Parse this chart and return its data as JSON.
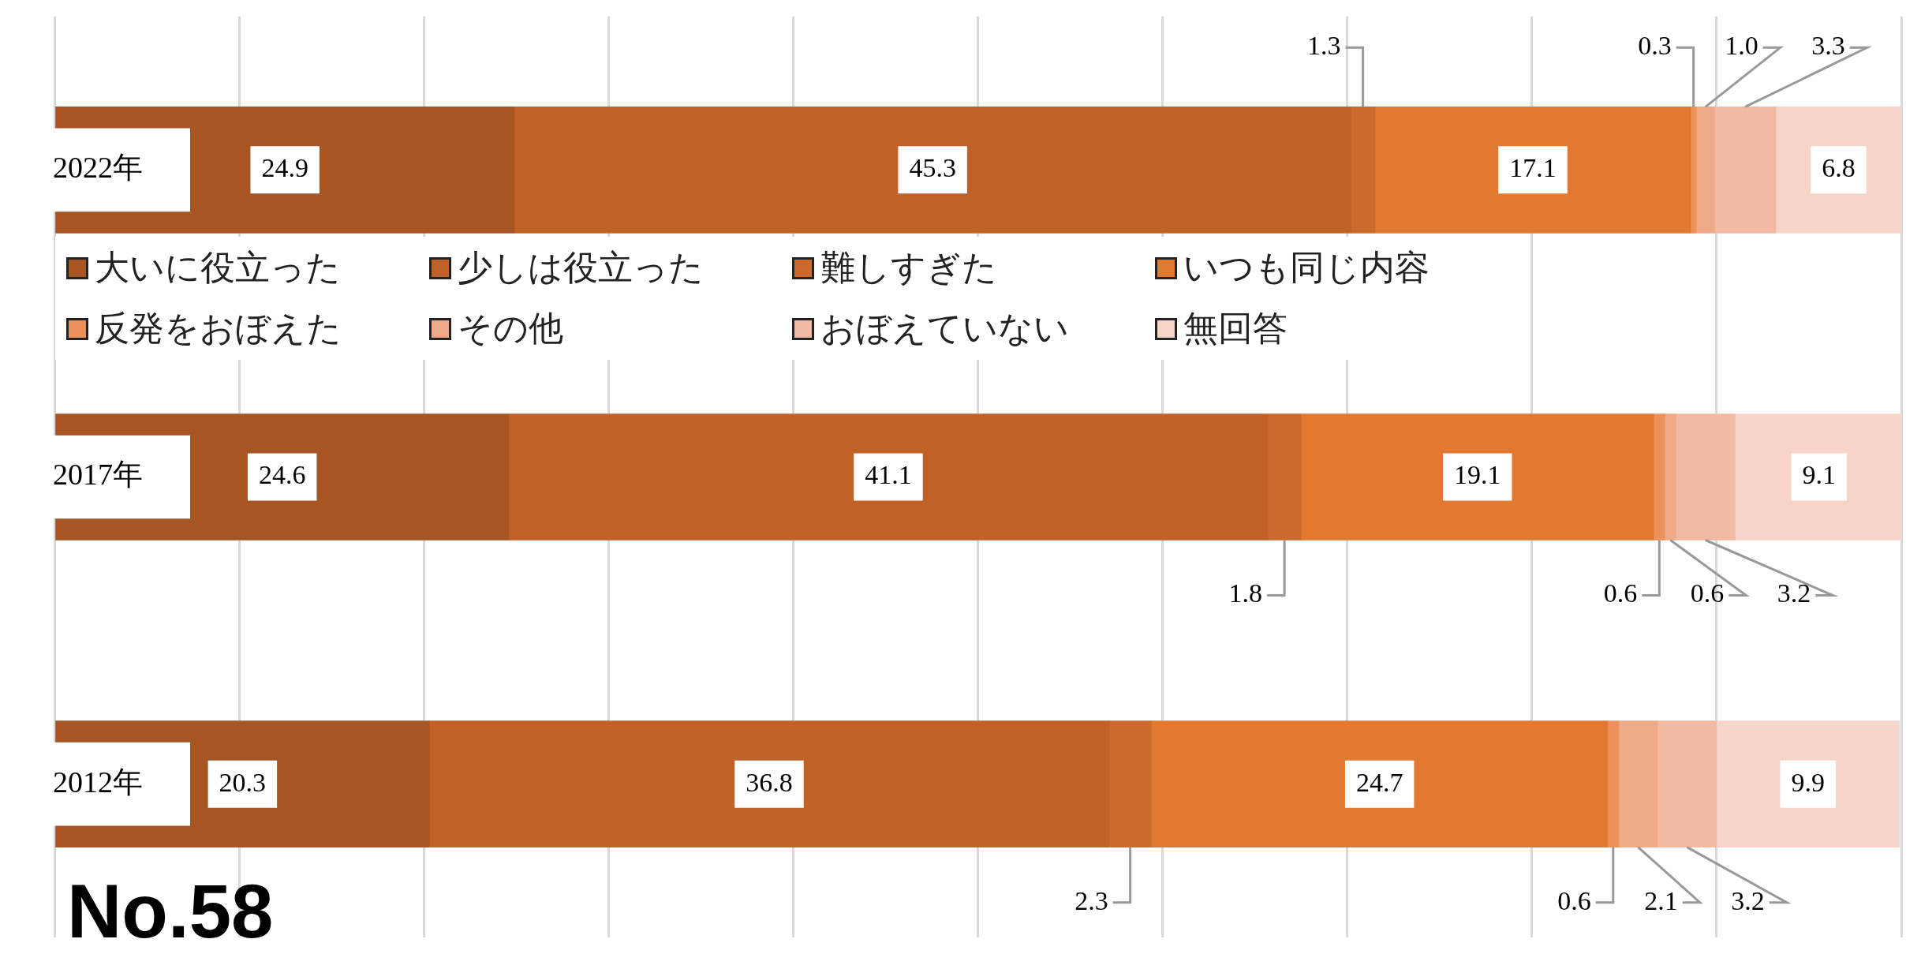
{
  "chart_data": {
    "type": "bar",
    "orientation": "horizontal",
    "stacked": true,
    "categories": [
      "2022年",
      "2017年",
      "2012年"
    ],
    "series": [
      {
        "name": "大いに役立った",
        "color": "#a65523",
        "values": [
          24.9,
          24.6,
          20.3
        ],
        "value_labels": [
          "24.9",
          "24.6",
          "20.3"
        ]
      },
      {
        "name": "少しは役立った",
        "color": "#c06228",
        "values": [
          45.3,
          41.1,
          36.8
        ],
        "value_labels": [
          "45.3",
          "41.1",
          "36.8"
        ]
      },
      {
        "name": "難しすぎた",
        "color": "#cb6a2c",
        "values": [
          1.3,
          1.8,
          2.3
        ],
        "value_labels": [
          "1.3",
          "1.8",
          "2.3"
        ]
      },
      {
        "name": "いつも同じ内容",
        "color": "#e27932",
        "values": [
          17.1,
          19.1,
          24.7
        ],
        "value_labels": [
          "17.1",
          "19.1",
          "24.7"
        ]
      },
      {
        "name": "反発をおぼえた",
        "color": "#ec915a",
        "values": [
          0.3,
          0.6,
          0.6
        ],
        "value_labels": [
          "0.3",
          "0.6",
          "0.6"
        ]
      },
      {
        "name": "その他",
        "color": "#f0a987",
        "values": [
          1.0,
          0.6,
          2.1
        ],
        "value_labels": [
          "1.0",
          "0.6",
          "2.1"
        ]
      },
      {
        "name": "おぼえていない",
        "color": "#f2b9a3",
        "values": [
          3.3,
          3.2,
          3.2
        ],
        "value_labels": [
          "3.3",
          "3.2",
          "3.2"
        ]
      },
      {
        "name": "無回答",
        "color": "#f7d4c8",
        "values": [
          6.8,
          9.1,
          9.9
        ],
        "value_labels": [
          "6.8",
          "9.1",
          "9.9"
        ]
      }
    ],
    "xlim": [
      0,
      100
    ],
    "xticks": [
      {
        "value": 0,
        "label": null
      },
      {
        "value": 10,
        "label": null
      },
      {
        "value": 20,
        "label": null
      },
      {
        "value": 30,
        "label": null
      },
      {
        "value": 40,
        "label": null
      },
      {
        "value": 50,
        "label": null
      },
      {
        "value": 60,
        "label": null
      },
      {
        "value": 70,
        "label": null
      },
      {
        "value": 80,
        "label": null
      },
      {
        "value": 90,
        "label": null
      },
      {
        "value": 100,
        "label": null
      }
    ],
    "tick_labels": "y",
    "grid": "x",
    "legend": "top left",
    "annotations": [
      "No.58"
    ]
  }
}
